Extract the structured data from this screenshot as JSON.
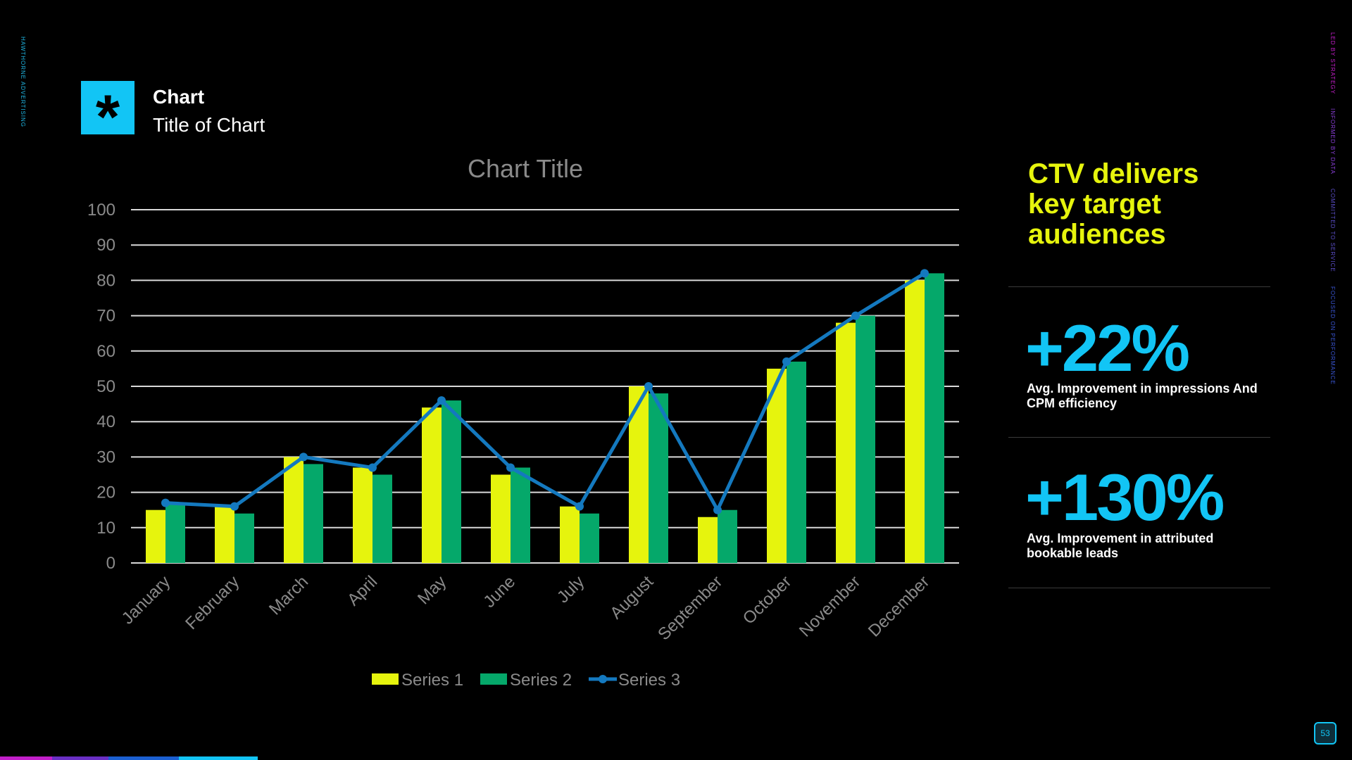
{
  "brand_side_text": "HAWTHORNE ADVERTISING",
  "right_side_labels": [
    "LED BY STRATEGY",
    "INFORMED BY DATA",
    "COMMITTED TO SERVICE",
    "FOCUSED ON PERFORMANCE"
  ],
  "header": {
    "icon": "asterisk-icon",
    "title": "Chart",
    "subtitle": "Title of Chart"
  },
  "chart_data": {
    "type": "bar",
    "title": "Chart Title",
    "categories": [
      "January",
      "February",
      "March",
      "April",
      "May",
      "June",
      "July",
      "August",
      "September",
      "October",
      "November",
      "December"
    ],
    "series": [
      {
        "name": "Series 1",
        "type": "bar",
        "color": "#e6f40d",
        "values": [
          15,
          16,
          30,
          27,
          44,
          25,
          16,
          50,
          13,
          55,
          68,
          80
        ]
      },
      {
        "name": "Series 2",
        "type": "bar",
        "color": "#05a86a",
        "values": [
          17,
          14,
          28,
          25,
          46,
          27,
          14,
          48,
          15,
          57,
          70,
          82
        ]
      },
      {
        "name": "Series 3",
        "type": "line",
        "color": "#1479bf",
        "values": [
          17,
          16,
          30,
          27,
          46,
          27,
          16,
          50,
          15,
          57,
          70,
          82
        ]
      }
    ],
    "ylim": [
      0,
      100
    ],
    "yticks": [
      0,
      10,
      20,
      30,
      40,
      50,
      60,
      70,
      80,
      90,
      100
    ],
    "grid": true,
    "legend": "bottom"
  },
  "headline": "CTV delivers key target audiences",
  "stats": [
    {
      "value": "+22%",
      "description": "Avg. Improvement in impressions And CPM efficiency"
    },
    {
      "value": "+130%",
      "description": "Avg. Improvement in attributed bookable leads"
    }
  ],
  "page_number": "53",
  "colors": {
    "accent_cyan": "#12c5f5",
    "accent_yellow": "#e6f40d",
    "accent_green": "#05a86a",
    "line_blue": "#1479bf"
  }
}
